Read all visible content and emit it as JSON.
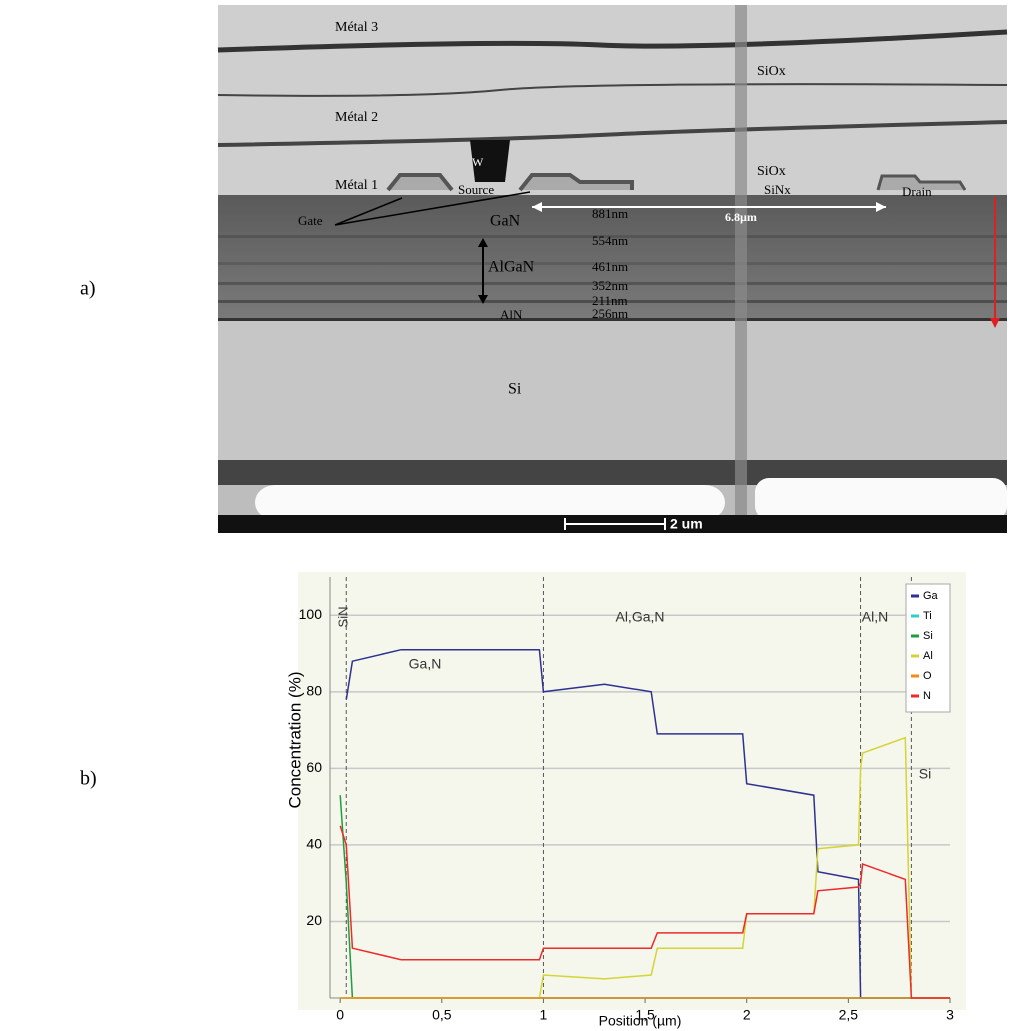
{
  "panel_labels": [
    "a)",
    "b)"
  ],
  "micrograph": {
    "labels": [
      "Métal 3",
      "SiOx",
      "Métal 2",
      "W",
      "SiOx",
      "Métal 1",
      "Source",
      "SiNx",
      "Drain",
      "Gate",
      "GaN",
      "881nm",
      "6.8µm",
      "554nm",
      "AlGaN",
      "461nm",
      "352nm",
      "211nm",
      "AlN",
      "256nm",
      "Si"
    ],
    "scale_bar": "2 um"
  },
  "chart_data": {
    "type": "line",
    "x_label": "Position (µm)",
    "y_label": "Concentration (%)",
    "annotations": [
      "SiN",
      "Ga,N",
      "Al,Ga,N",
      "Al,N",
      "Si"
    ],
    "region_boundaries": [
      0.03,
      1.0,
      2.56,
      2.81
    ],
    "xlim": [
      -0.05,
      3.0
    ],
    "ylim": [
      0,
      110
    ],
    "xticks": [
      0,
      {
        "value": 0.5,
        "label": "0,5"
      },
      1,
      {
        "value": 1.5,
        "label": "1,5"
      },
      2,
      {
        "value": 2.5,
        "label": "2,5"
      },
      3
    ],
    "yticks": [
      20,
      40,
      60,
      80,
      100
    ],
    "grid": true,
    "legend": "upper right",
    "x": [
      0,
      0.03,
      0.06,
      0.3,
      0.6,
      0.98,
      1.0,
      1.3,
      1.53,
      1.56,
      1.98,
      2.0,
      2.33,
      2.35,
      2.55,
      2.56,
      2.57,
      2.78,
      2.81,
      3.0
    ],
    "series": [
      {
        "name": "Ga",
        "color": "#2e3192",
        "values": [
          null,
          78,
          88,
          91,
          91,
          91,
          80,
          82,
          80,
          69,
          69,
          56,
          53,
          33,
          31,
          0,
          0,
          0,
          0,
          0
        ]
      },
      {
        "name": "Ti",
        "color": "#33cccc",
        "values": [
          0,
          0,
          0,
          0,
          0,
          0,
          0,
          0,
          0,
          0,
          0,
          0,
          0,
          0,
          0,
          0,
          0,
          0,
          0,
          0
        ]
      },
      {
        "name": "Si",
        "color": "#1e9e3e",
        "values": [
          53,
          30,
          0,
          0,
          0,
          0,
          0,
          0,
          0,
          0,
          0,
          0,
          0,
          0,
          0,
          0,
          0,
          0,
          0,
          0
        ]
      },
      {
        "name": "Al",
        "color": "#d4d435",
        "values": [
          0,
          0,
          0,
          0,
          0,
          0,
          6,
          5,
          6,
          13,
          13,
          22,
          22,
          39,
          40,
          60,
          64,
          68,
          0,
          0
        ]
      },
      {
        "name": "O",
        "color": "#f28a1e",
        "values": [
          0,
          0,
          0,
          0,
          0,
          0,
          0,
          0,
          0,
          0,
          0,
          0,
          0,
          0,
          0,
          0,
          0,
          0,
          0,
          0
        ]
      },
      {
        "name": "N",
        "color": "#ee2a2a",
        "values": [
          45,
          40,
          13,
          10,
          10,
          10,
          13,
          13,
          13,
          17,
          17,
          22,
          22,
          28,
          29,
          30,
          35,
          31,
          0,
          0
        ]
      }
    ]
  }
}
